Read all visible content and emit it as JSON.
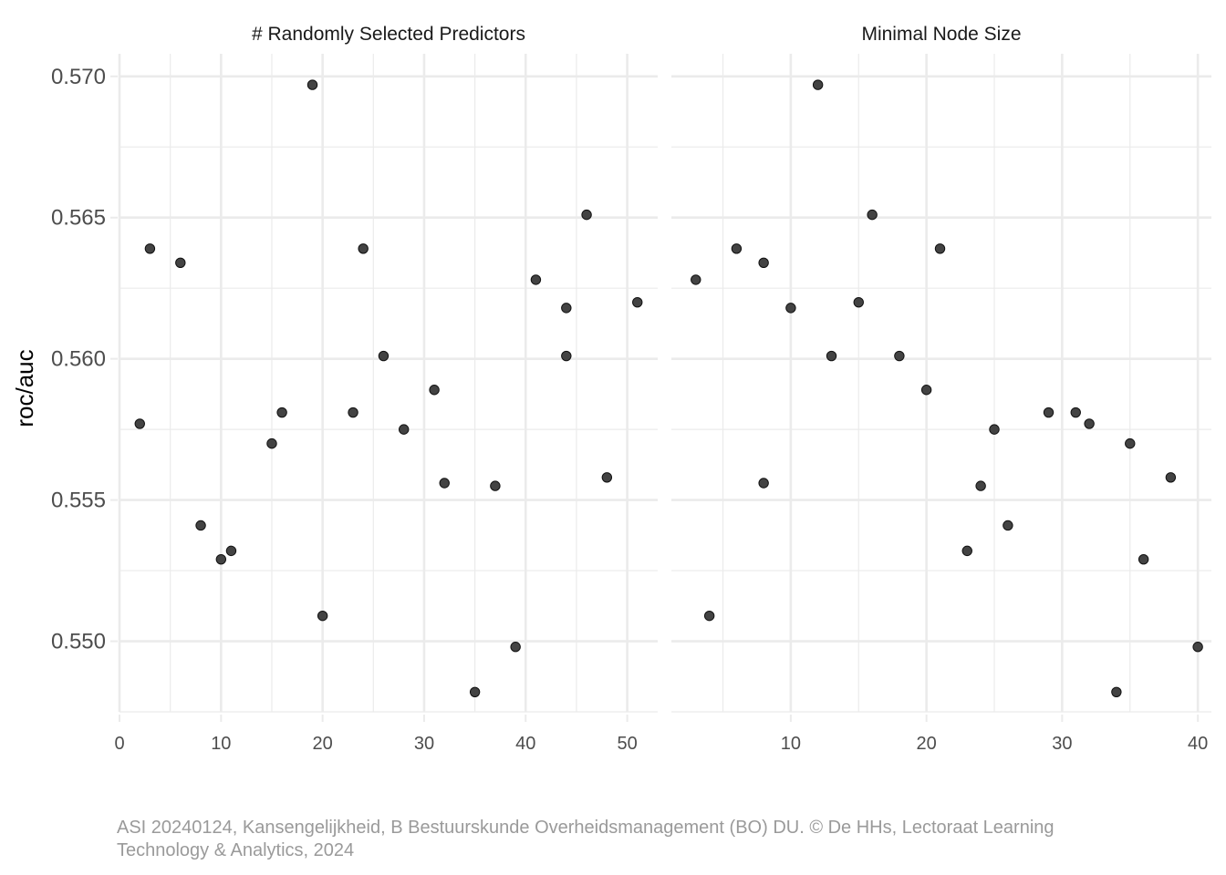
{
  "chart_data": {
    "type": "scatter",
    "ylabel": "roc/auc",
    "ylim": [
      0.5475,
      0.5708
    ],
    "y_ticks": [
      0.55,
      0.555,
      0.56,
      0.565,
      0.57
    ],
    "y_tick_labels": [
      "0.550",
      "0.555",
      "0.560",
      "0.565",
      "0.570"
    ],
    "panels": [
      {
        "strip_label": "# Randomly Selected Predictors",
        "xlim": [
          0,
          53
        ],
        "x_ticks": [
          0,
          10,
          20,
          30,
          40,
          50
        ],
        "x_tick_labels": [
          "0",
          "10",
          "20",
          "30",
          "40",
          "50"
        ],
        "points": [
          {
            "x": 2,
            "y": 0.5577
          },
          {
            "x": 3,
            "y": 0.5639
          },
          {
            "x": 6,
            "y": 0.5634
          },
          {
            "x": 8,
            "y": 0.5541
          },
          {
            "x": 10,
            "y": 0.5529
          },
          {
            "x": 11,
            "y": 0.5532
          },
          {
            "x": 15,
            "y": 0.557
          },
          {
            "x": 16,
            "y": 0.5581
          },
          {
            "x": 19,
            "y": 0.5697
          },
          {
            "x": 20,
            "y": 0.5509
          },
          {
            "x": 23,
            "y": 0.5581
          },
          {
            "x": 24,
            "y": 0.5639
          },
          {
            "x": 26,
            "y": 0.5601
          },
          {
            "x": 28,
            "y": 0.5575
          },
          {
            "x": 31,
            "y": 0.5589
          },
          {
            "x": 32,
            "y": 0.5556
          },
          {
            "x": 35,
            "y": 0.5482
          },
          {
            "x": 37,
            "y": 0.5555
          },
          {
            "x": 39,
            "y": 0.5498
          },
          {
            "x": 41,
            "y": 0.5628
          },
          {
            "x": 44,
            "y": 0.5618
          },
          {
            "x": 44,
            "y": 0.5601
          },
          {
            "x": 46,
            "y": 0.5651
          },
          {
            "x": 48,
            "y": 0.5558
          },
          {
            "x": 51,
            "y": 0.562
          }
        ]
      },
      {
        "strip_label": "Minimal Node Size",
        "xlim": [
          1.2,
          41.0
        ],
        "x_ticks": [
          10,
          20,
          30,
          40
        ],
        "x_tick_labels": [
          "10",
          "20",
          "30",
          "40"
        ],
        "points": [
          {
            "x": 3,
            "y": 0.5628
          },
          {
            "x": 4,
            "y": 0.5509
          },
          {
            "x": 6,
            "y": 0.5639
          },
          {
            "x": 8,
            "y": 0.5634
          },
          {
            "x": 8,
            "y": 0.5556
          },
          {
            "x": 10,
            "y": 0.5618
          },
          {
            "x": 12,
            "y": 0.5697
          },
          {
            "x": 13,
            "y": 0.5601
          },
          {
            "x": 15,
            "y": 0.562
          },
          {
            "x": 16,
            "y": 0.5651
          },
          {
            "x": 18,
            "y": 0.5601
          },
          {
            "x": 20,
            "y": 0.5589
          },
          {
            "x": 21,
            "y": 0.5639
          },
          {
            "x": 23,
            "y": 0.5532
          },
          {
            "x": 24,
            "y": 0.5555
          },
          {
            "x": 25,
            "y": 0.5575
          },
          {
            "x": 26,
            "y": 0.5541
          },
          {
            "x": 29,
            "y": 0.5581
          },
          {
            "x": 31,
            "y": 0.5581
          },
          {
            "x": 32,
            "y": 0.5577
          },
          {
            "x": 34,
            "y": 0.5482
          },
          {
            "x": 35,
            "y": 0.557
          },
          {
            "x": 36,
            "y": 0.5529
          },
          {
            "x": 38,
            "y": 0.5558
          },
          {
            "x": 40,
            "y": 0.5498
          }
        ]
      }
    ],
    "grid": true,
    "point_color": "#333333",
    "gridline_color": "#ebebeb"
  },
  "caption": "ASI 20240124, Kansengelijkheid, B Bestuurskunde Overheidsmanagement (BO) DU. © De HHs, Lectoraat Learning Technology & Analytics, 2024"
}
